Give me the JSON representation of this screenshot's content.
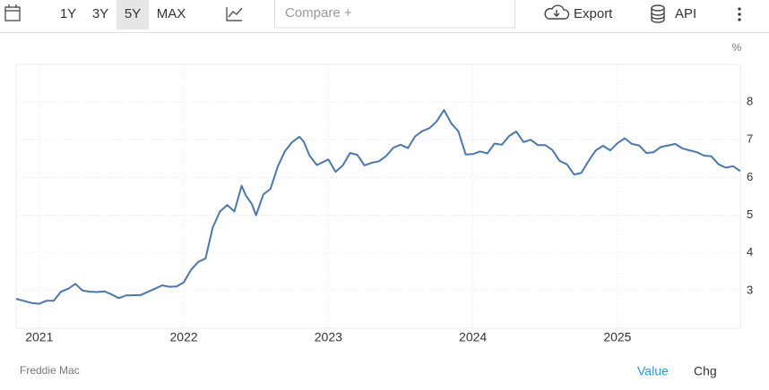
{
  "ui": {
    "ranges": [
      "1Y",
      "3Y",
      "5Y",
      "MAX"
    ],
    "compare": "Compare +",
    "export": "Export",
    "api": "API",
    "source": "Freddie Mac",
    "tabs": [
      "Value",
      "Chg"
    ]
  },
  "chart_data": {
    "type": "line",
    "ylabel": "%",
    "color": "#4a78ab",
    "x": [
      2020.84,
      2020.9,
      2020.95,
      2021.0,
      2021.05,
      2021.1,
      2021.15,
      2021.2,
      2021.25,
      2021.3,
      2021.35,
      2021.4,
      2021.45,
      2021.5,
      2021.55,
      2021.6,
      2021.7,
      2021.8,
      2021.85,
      2021.9,
      2021.95,
      2022.0,
      2022.05,
      2022.1,
      2022.15,
      2022.2,
      2022.25,
      2022.3,
      2022.35,
      2022.4,
      2022.43,
      2022.47,
      2022.5,
      2022.55,
      2022.6,
      2022.65,
      2022.7,
      2022.75,
      2022.8,
      2022.83,
      2022.87,
      2022.92,
      2022.97,
      2023.0,
      2023.05,
      2023.1,
      2023.15,
      2023.2,
      2023.25,
      2023.3,
      2023.35,
      2023.4,
      2023.45,
      2023.5,
      2023.55,
      2023.6,
      2023.65,
      2023.7,
      2023.75,
      2023.8,
      2023.85,
      2023.9,
      2023.95,
      2024.0,
      2024.05,
      2024.1,
      2024.15,
      2024.2,
      2024.25,
      2024.3,
      2024.35,
      2024.4,
      2024.45,
      2024.5,
      2024.55,
      2024.6,
      2024.65,
      2024.7,
      2024.75,
      2024.8,
      2024.85,
      2024.9,
      2024.95,
      2025.0,
      2025.05,
      2025.1,
      2025.15,
      2025.2,
      2025.25,
      2025.3,
      2025.35,
      2025.4,
      2025.45,
      2025.5,
      2025.55,
      2025.6,
      2025.65,
      2025.7,
      2025.75,
      2025.8,
      2025.85
    ],
    "values": [
      2.78,
      2.72,
      2.67,
      2.65,
      2.73,
      2.73,
      2.97,
      3.05,
      3.18,
      3.0,
      2.97,
      2.96,
      2.98,
      2.9,
      2.8,
      2.87,
      2.88,
      3.05,
      3.14,
      3.1,
      3.11,
      3.22,
      3.55,
      3.76,
      3.85,
      4.67,
      5.1,
      5.27,
      5.1,
      5.78,
      5.52,
      5.3,
      5.0,
      5.55,
      5.7,
      6.29,
      6.7,
      6.94,
      7.08,
      6.95,
      6.58,
      6.33,
      6.42,
      6.48,
      6.15,
      6.32,
      6.65,
      6.6,
      6.32,
      6.39,
      6.43,
      6.57,
      6.79,
      6.87,
      6.78,
      7.09,
      7.23,
      7.31,
      7.49,
      7.79,
      7.44,
      7.22,
      6.61,
      6.62,
      6.69,
      6.64,
      6.9,
      6.87,
      7.1,
      7.22,
      6.94,
      7.0,
      6.86,
      6.86,
      6.73,
      6.44,
      6.35,
      6.08,
      6.12,
      6.44,
      6.72,
      6.84,
      6.72,
      6.91,
      7.04,
      6.89,
      6.85,
      6.65,
      6.67,
      6.81,
      6.85,
      6.89,
      6.77,
      6.72,
      6.67,
      6.58,
      6.56,
      6.35,
      6.26,
      6.3,
      6.17
    ],
    "xlim": [
      2020.84,
      2025.85
    ],
    "xticks": [
      2021,
      2022,
      2023,
      2024,
      2025
    ],
    "ylim": [
      2,
      9
    ],
    "yticks": [
      3,
      4,
      5,
      6,
      7,
      8
    ],
    "grid": true
  }
}
